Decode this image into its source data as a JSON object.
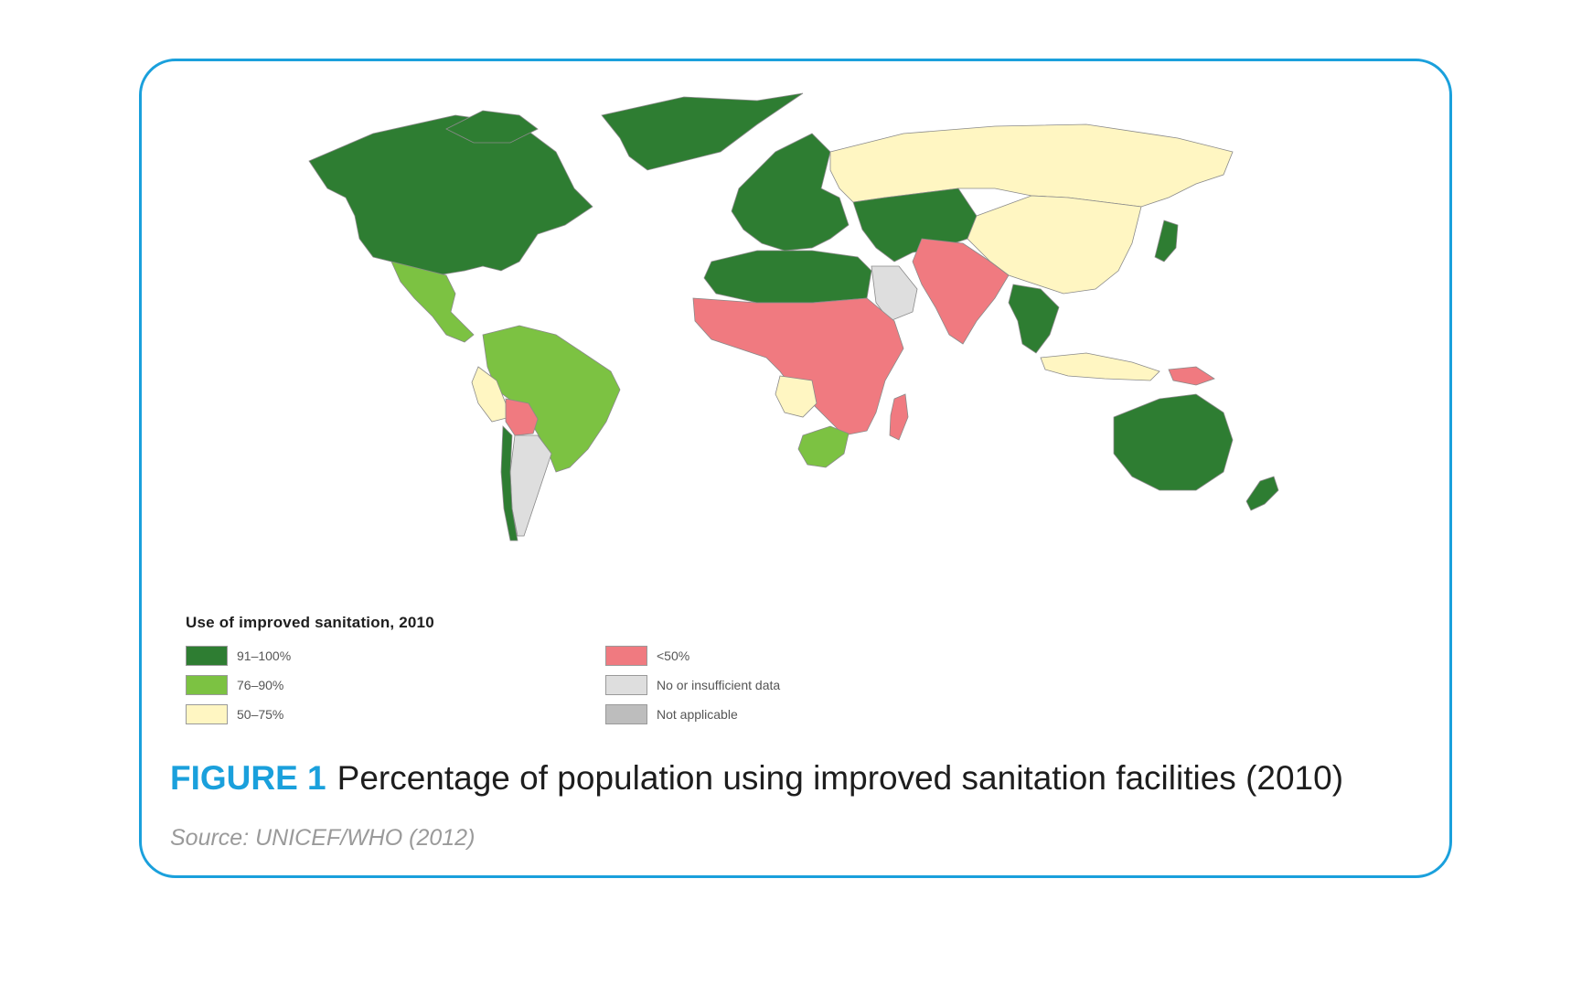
{
  "colors": {
    "frame": "#1aa0dc",
    "band_91_100": "#2e7d32",
    "band_76_90": "#7cc242",
    "band_50_75": "#fff6c2",
    "band_lt_50": "#f07a80",
    "no_data": "#dedede",
    "not_applicable": "#bdbdbd",
    "ocean": "#ffffff"
  },
  "legend": {
    "title": "Use of improved sanitation, 2010",
    "items": [
      {
        "label": "91–100%",
        "color": "#2e7d32"
      },
      {
        "label": "76–90%",
        "color": "#7cc242"
      },
      {
        "label": "50–75%",
        "color": "#fff6c2"
      },
      {
        "label": "<50%",
        "color": "#f07a80"
      },
      {
        "label": "No or insufficient data",
        "color": "#dedede"
      },
      {
        "label": "Not applicable",
        "color": "#bdbdbd"
      }
    ]
  },
  "caption": {
    "figure_label": "FIGURE 1",
    "title": "Percentage of population using improved sanitation facilities (2010)"
  },
  "source": "Source: UNICEF/WHO (2012)",
  "regions": [
    {
      "name": "north-america",
      "band": "91–100%"
    },
    {
      "name": "greenland",
      "band": "91–100%"
    },
    {
      "name": "mexico-central-america",
      "band": "76–90%"
    },
    {
      "name": "brazil-colombia-venezuela",
      "band": "76–90%"
    },
    {
      "name": "peru",
      "band": "50–75%"
    },
    {
      "name": "bolivia",
      "band": "<50%"
    },
    {
      "name": "argentina",
      "band": "No or insufficient data"
    },
    {
      "name": "chile",
      "band": "91–100%"
    },
    {
      "name": "europe",
      "band": "91–100%"
    },
    {
      "name": "russia",
      "band": "50–75%"
    },
    {
      "name": "china",
      "band": "50–75%"
    },
    {
      "name": "kazakhstan-central-asia",
      "band": "91–100%"
    },
    {
      "name": "north-africa",
      "band": "91–100%"
    },
    {
      "name": "saudi-arabia",
      "band": "No or insufficient data"
    },
    {
      "name": "sub-saharan-africa",
      "band": "<50%"
    },
    {
      "name": "angola",
      "band": "50–75%"
    },
    {
      "name": "south-africa",
      "band": "76–90%"
    },
    {
      "name": "madagascar",
      "band": "<50%"
    },
    {
      "name": "india",
      "band": "<50%"
    },
    {
      "name": "southeast-asia",
      "band": "91–100%"
    },
    {
      "name": "indonesia",
      "band": "50–75%"
    },
    {
      "name": "japan",
      "band": "91–100%"
    },
    {
      "name": "australia",
      "band": "91–100%"
    },
    {
      "name": "new-zealand",
      "band": "91–100%"
    },
    {
      "name": "papua-new-guinea",
      "band": "<50%"
    }
  ]
}
